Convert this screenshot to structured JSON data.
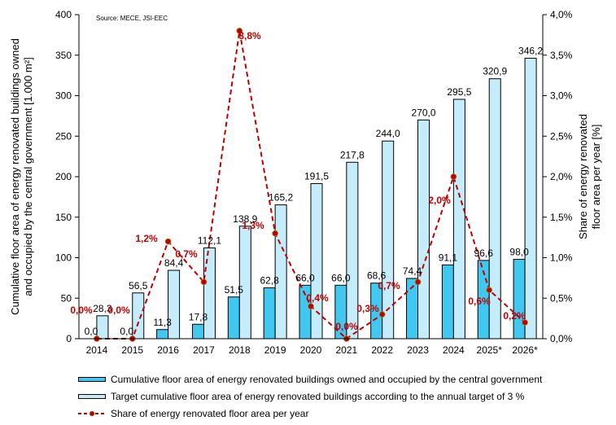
{
  "chart_data": {
    "type": "bar",
    "source": "Source: MECE, JSI-EEC",
    "categories": [
      "2014",
      "2015",
      "2016",
      "2017",
      "2018",
      "2019",
      "2020",
      "2021",
      "2022",
      "2023",
      "2024",
      "2025*",
      "2026*"
    ],
    "series": [
      {
        "name": "Cumulative floor area of energy renovated buildings owned and occupied by the central government",
        "type": "bar",
        "axis": "left",
        "color": "#40c8f0",
        "values": [
          0.0,
          0.0,
          11.3,
          17.8,
          51.5,
          62.8,
          66.0,
          66.0,
          68.6,
          74.4,
          91.1,
          96.6,
          98.0
        ],
        "labels": [
          "0,0",
          "0,0",
          "11,3",
          "17,8",
          "51,5",
          "62,8",
          "66,0",
          "66,0",
          "68,6",
          "74,4",
          "91,1",
          "96,6",
          "98,0"
        ]
      },
      {
        "name": "Target cumulative floor area of energy renovated buildings according to the annual target of 3 %",
        "type": "bar",
        "axis": "left",
        "color": "#c4ecfa",
        "values": [
          28.3,
          56.5,
          84.4,
          112.1,
          138.9,
          165.2,
          191.5,
          217.8,
          244.0,
          270.0,
          295.5,
          320.9,
          346.2
        ],
        "labels": [
          "28,3",
          "56,5",
          "84,4",
          "112,1",
          "138,9",
          "165,2",
          "191,5",
          "217,8",
          "244,0",
          "270,0",
          "295,5",
          "320,9",
          "346,2"
        ]
      },
      {
        "name": "Share of energy renovated floor area per year",
        "type": "line",
        "axis": "right",
        "color": "#c00000",
        "values": [
          0.0,
          0.0,
          1.2,
          0.7,
          3.8,
          1.3,
          0.4,
          0.0,
          0.3,
          0.7,
          2.0,
          0.6,
          0.2
        ],
        "labels": [
          "0,0%",
          "0,0%",
          "1,2%",
          "0,7%",
          "3,8%",
          "1,3%",
          "0,4%",
          "0,0%",
          "0,3%",
          "0,7%",
          "2,0%",
          "0,6%",
          "0,2%"
        ]
      }
    ],
    "ylabel": "Cumulative floor area of energy renovated buildings owned and occupied by the central government [1.000 m²]",
    "ylabel_lines": [
      "Cumulative floor area of energy renovated buildings owned",
      "and occupied by the central government [1.000 m²]"
    ],
    "y2label_lines": [
      "Share of energy renovated",
      "floor area per year [%]"
    ],
    "ylim": [
      0,
      400
    ],
    "yticks": [
      0,
      50,
      100,
      150,
      200,
      250,
      300,
      350,
      400
    ],
    "ytick_labels": [
      "0",
      "50",
      "100",
      "150",
      "200",
      "250",
      "300",
      "350",
      "400"
    ],
    "y2lim": [
      0,
      4.0
    ],
    "y2ticks": [
      0,
      0.5,
      1.0,
      1.5,
      2.0,
      2.5,
      3.0,
      3.5,
      4.0
    ],
    "y2tick_labels": [
      "0,0%",
      "0,5%",
      "1,0%",
      "1,5%",
      "2,0%",
      "2,5%",
      "3,0%",
      "3,5%",
      "4,0%"
    ],
    "grid": false,
    "legend_position": "bottom"
  }
}
